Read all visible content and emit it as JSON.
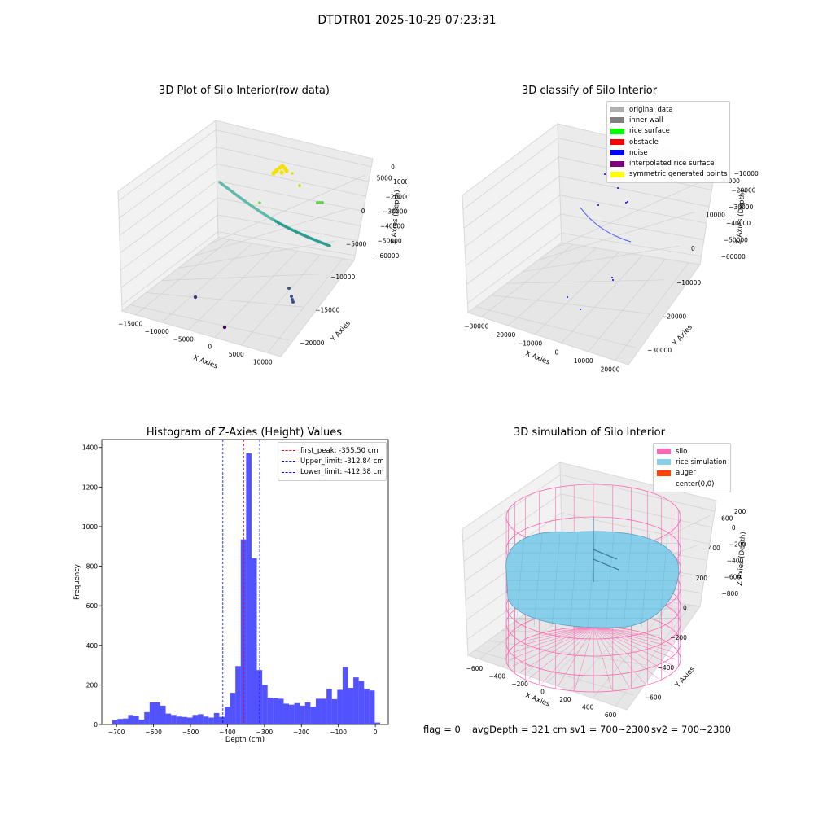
{
  "suptitle": "DTDTR01 2025-10-29 07:23:31",
  "chart_data": [
    {
      "type": "scatter",
      "projection": "3d",
      "title": "3D Plot of Silo Interior(row data)",
      "xlabel": "X Axies",
      "ylabel": "Y Axies",
      "zlabel": "Z Axies (Depth)",
      "xticks": [
        "−15000",
        "−10000",
        "−5000",
        "0",
        "5000",
        "10000"
      ],
      "yticks": [
        "−20000",
        "−15000",
        "−10000",
        "−5000",
        "0",
        "5000"
      ],
      "zticks": [
        "0",
        "−10000",
        "−20000",
        "−30000",
        "−40000",
        "−50000",
        "−60000"
      ],
      "colormap": "viridis"
    },
    {
      "type": "scatter",
      "projection": "3d",
      "title": "3D classify of Silo Interior",
      "xlabel": "X Axies",
      "ylabel": "Y Axies",
      "zlabel": "Z Axies (Depth)",
      "xticks": [
        "−30000",
        "−20000",
        "−10000",
        "0",
        "10000",
        "20000"
      ],
      "yticks": [
        "−30000",
        "−20000",
        "−10000",
        "0",
        "10000",
        "20000"
      ],
      "zticks": [
        "−10000",
        "−20000",
        "−30000",
        "−40000",
        "−50000",
        "−60000"
      ],
      "legend_position": "top-right",
      "legend": [
        {
          "label": "original data",
          "color": "#b0b0b0"
        },
        {
          "label": "inner wall",
          "color": "#808080"
        },
        {
          "label": "rice surface",
          "color": "#00ff00"
        },
        {
          "label": "obstacle",
          "color": "#ff0000"
        },
        {
          "label": "noise",
          "color": "#0000ff"
        },
        {
          "label": "interpolated rice surface",
          "color": "#800080"
        },
        {
          "label": "symmetric generated points",
          "color": "#ffff00"
        }
      ]
    },
    {
      "type": "bar",
      "title": "Histogram of Z-Axies (Height) Values",
      "xlabel": "Depth (cm)",
      "ylabel": "Frequency",
      "xlim": [
        -740,
        35
      ],
      "ylim": [
        0,
        1440
      ],
      "xticks": [
        "−700",
        "−600",
        "−500",
        "−400",
        "−300",
        "−200",
        "−100",
        "0"
      ],
      "yticks": [
        "0",
        "200",
        "400",
        "600",
        "800",
        "1000",
        "1200",
        "1400"
      ],
      "bar_color": "#0000ff",
      "bin_width": 14.5,
      "bin_start": -712,
      "values": [
        22,
        28,
        30,
        48,
        42,
        25,
        62,
        112,
        112,
        95,
        55,
        48,
        40,
        38,
        35,
        48,
        52,
        40,
        35,
        58,
        38,
        90,
        160,
        295,
        935,
        1370,
        840,
        275,
        200,
        135,
        132,
        130,
        105,
        100,
        108,
        95,
        112,
        90,
        130,
        130,
        180,
        128,
        175,
        290,
        185,
        238,
        220,
        180,
        172,
        10
      ],
      "lines": [
        {
          "label": "first_peak: -355.50 cm",
          "value": -355.5,
          "color": "#ff0000"
        },
        {
          "label": "Upper_limit: -312.84 cm",
          "value": -312.84,
          "color": "#0000ff"
        },
        {
          "label": "Lower_limit: -412.38 cm",
          "value": -412.38,
          "color": "#0000ff"
        }
      ],
      "legend_position": "top-right"
    },
    {
      "type": "surface",
      "projection": "3d",
      "title": "3D simulation of Silo Interior",
      "xlabel": "X Axies",
      "ylabel": "Y Axies",
      "zlabel": "Z Axies (Depth)",
      "xticks": [
        "−600",
        "−400",
        "−200",
        "0",
        "200",
        "400",
        "600"
      ],
      "yticks": [
        "−600",
        "−400",
        "−200",
        "0",
        "200",
        "400",
        "600"
      ],
      "zticks": [
        "200",
        "0",
        "−200",
        "−400",
        "−600",
        "−800"
      ],
      "legend_position": "top-right",
      "legend": [
        {
          "label": "silo",
          "color": "#ff69b4"
        },
        {
          "label": "rice simulation",
          "color": "#87ceeb"
        },
        {
          "label": "auger",
          "color": "#ff4500"
        },
        {
          "label": "center(0,0)",
          "color": ""
        }
      ]
    }
  ],
  "footer": {
    "flag": "flag = 0",
    "avg": "avgDepth = 321 cm",
    "sv1": "sv1 = 700~2300",
    "sv2": "sv2 = 700~2300"
  }
}
